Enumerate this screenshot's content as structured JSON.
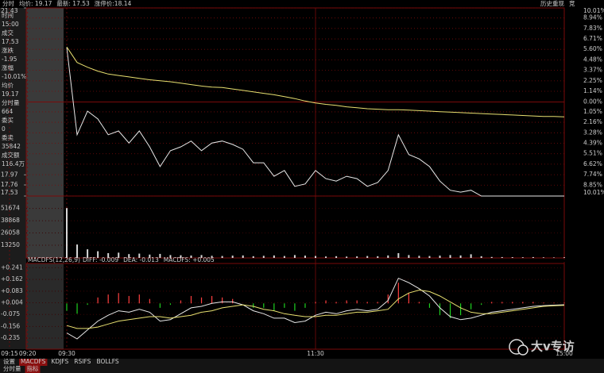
{
  "toolbar": [
    {
      "text": "分时",
      "color": "#dddddd"
    },
    {
      "text": "均价: 19.17",
      "color": "#e8e070"
    },
    {
      "text": "最新: 17.53",
      "color": "#dddddd"
    },
    {
      "text": "涨停价:18.14",
      "color": "#e04040"
    }
  ],
  "toolbar_right": [
    "历史重现",
    "竞"
  ],
  "info_panel": [
    {
      "label": "时间",
      "value": "15:00",
      "color": "#dddddd"
    },
    {
      "label": "成交",
      "value": "17.53",
      "color": "#20d020"
    },
    {
      "label": "涨跌",
      "value": "-1.95",
      "color": "#20d020"
    },
    {
      "label": "涨幅",
      "value": "-10.01%",
      "color": "#20d020"
    },
    {
      "label": "均价",
      "value": "19.17",
      "color": "#ff4040"
    },
    {
      "label": "分时量",
      "value": "664",
      "color": "#e8e070"
    },
    {
      "label": "委买",
      "value": "0",
      "color": "#ff4040"
    },
    {
      "label": "委卖",
      "value": "35842",
      "color": "#20d020"
    },
    {
      "label": "成交额",
      "value": "116.4万",
      "color": "#6fa8ff"
    }
  ],
  "chart_data": [
    {
      "type": "line",
      "x": [
        "09:30",
        "09:35",
        "09:40",
        "09:45",
        "09:50",
        "09:55",
        "10:00",
        "10:05",
        "10:10",
        "10:15",
        "10:20",
        "10:25",
        "10:30",
        "10:35",
        "10:40",
        "10:45",
        "10:50",
        "10:55",
        "11:00",
        "11:05",
        "11:10",
        "11:15",
        "11:20",
        "11:25",
        "11:30",
        "13:05",
        "13:10",
        "13:15",
        "13:20",
        "13:25",
        "13:30",
        "13:35",
        "13:40",
        "13:45",
        "13:50",
        "13:55",
        "14:00",
        "14:05",
        "14:10",
        "14:15",
        "14:20",
        "14:25",
        "14:30",
        "14:35",
        "14:40",
        "14:45",
        "14:50",
        "14:55",
        "15:00"
      ],
      "series": [
        {
          "color": "#e8e8e8",
          "values": [
            20.61,
            18.8,
            19.29,
            19.13,
            18.8,
            18.88,
            18.63,
            18.88,
            18.55,
            18.14,
            18.47,
            18.55,
            18.67,
            18.47,
            18.63,
            18.67,
            18.6,
            18.5,
            18.22,
            18.22,
            17.94,
            18.06,
            17.73,
            17.78,
            18.06,
            17.89,
            17.84,
            17.94,
            17.89,
            17.73,
            17.81,
            18.06,
            18.8,
            18.39,
            18.3,
            18.14,
            17.84,
            17.65,
            17.61,
            17.65,
            17.53,
            17.53,
            17.53,
            17.53,
            17.53,
            17.53,
            17.53,
            17.53,
            17.53
          ]
        },
        {
          "color": "#e8e070",
          "values": [
            20.62,
            20.3,
            20.2,
            20.12,
            20.06,
            20.03,
            20.0,
            19.97,
            19.94,
            19.92,
            19.9,
            19.87,
            19.84,
            19.81,
            19.79,
            19.78,
            19.75,
            19.72,
            19.69,
            19.66,
            19.63,
            19.59,
            19.55,
            19.5,
            19.46,
            19.43,
            19.41,
            19.38,
            19.36,
            19.34,
            19.33,
            19.32,
            19.32,
            19.31,
            19.3,
            19.29,
            19.28,
            19.27,
            19.26,
            19.25,
            19.24,
            19.23,
            19.22,
            19.21,
            19.2,
            19.19,
            19.18,
            19.18,
            19.17
          ]
        }
      ],
      "ylim": [
        17.53,
        21.43
      ],
      "yticks": [
        21.43,
        17.97,
        17.76,
        17.53
      ],
      "y2lim": [
        -10.01,
        10.01
      ],
      "y2ticks": [
        {
          "value": 10.01,
          "label": "10.01%"
        },
        {
          "value": 8.94,
          "label": "8.94%"
        },
        {
          "value": 7.83,
          "label": "7.83%"
        },
        {
          "value": 6.71,
          "label": "6.71%"
        },
        {
          "value": 5.6,
          "label": "5.60%"
        },
        {
          "value": 4.48,
          "label": "4.48%"
        },
        {
          "value": 3.37,
          "label": "3.37%"
        },
        {
          "value": 2.25,
          "label": "2.25%"
        },
        {
          "value": 1.14,
          "label": "1.14%"
        },
        {
          "value": 0,
          "label": "0.00%"
        },
        {
          "value": -1.05,
          "label": "1.05%"
        },
        {
          "value": -2.16,
          "label": "2.16%"
        },
        {
          "value": -3.28,
          "label": "3.28%"
        },
        {
          "value": -4.39,
          "label": "4.39%"
        },
        {
          "value": -5.51,
          "label": "5.51%"
        },
        {
          "value": -6.62,
          "label": "6.62%"
        },
        {
          "value": -7.74,
          "label": "7.74%"
        },
        {
          "value": -8.85,
          "label": "8.85%"
        },
        {
          "value": -10.01,
          "label": "10.01%"
        }
      ],
      "xticks": [
        "09:15",
        "09:20",
        "09:30",
        "11:30",
        "15:00"
      ],
      "up_color": "#ff4040",
      "down_color": "#20d020",
      "grid_color": "#7a0a0a"
    },
    {
      "type": "bar",
      "x": [
        "09:30",
        "09:35",
        "09:40",
        "09:45",
        "09:50",
        "09:55",
        "10:00",
        "10:05",
        "10:10",
        "10:15",
        "10:20",
        "10:25",
        "10:30",
        "10:35",
        "10:40",
        "10:45",
        "10:50",
        "10:55",
        "11:00",
        "11:05",
        "11:10",
        "11:15",
        "11:20",
        "11:25",
        "11:30",
        "13:05",
        "13:10",
        "13:15",
        "13:20",
        "13:25",
        "13:30",
        "13:35",
        "13:40",
        "13:45",
        "13:50",
        "13:55",
        "14:00",
        "14:05",
        "14:10",
        "14:15",
        "14:20",
        "14:25",
        "14:30",
        "14:35",
        "14:40",
        "14:45",
        "14:50",
        "14:55",
        "15:00"
      ],
      "values": [
        52000,
        14000,
        9000,
        7000,
        5000,
        5500,
        4000,
        4500,
        3500,
        4200,
        3000,
        2800,
        2500,
        3000,
        2200,
        2000,
        2400,
        2600,
        1800,
        2200,
        2600,
        2000,
        3000,
        2400,
        2000,
        1500,
        1800,
        1400,
        1600,
        2000,
        1800,
        2600,
        5000,
        3000,
        2200,
        2000,
        2400,
        3000,
        2600,
        3800,
        1800,
        1000,
        900,
        800,
        700,
        900,
        600,
        500,
        664
      ],
      "color": "#d8d8d8",
      "ylim": [
        0,
        64600
      ],
      "yticks": [
        51674,
        38868,
        26058,
        13250
      ]
    },
    {
      "type": "macd",
      "title": "MACDFS(12,26,9)",
      "readout": [
        {
          "text": "DIFF: -0.009",
          "color": "#e8e8e8"
        },
        {
          "text": "DEA: -0.013",
          "color": "#e8e070"
        },
        {
          "text": "MACDFS: +0.005",
          "color": "#ff4040"
        }
      ],
      "x": [
        "09:30",
        "09:35",
        "09:40",
        "09:45",
        "09:50",
        "09:55",
        "10:00",
        "10:05",
        "10:10",
        "10:15",
        "10:20",
        "10:25",
        "10:30",
        "10:35",
        "10:40",
        "10:45",
        "10:50",
        "10:55",
        "11:00",
        "11:05",
        "11:10",
        "11:15",
        "11:20",
        "11:25",
        "11:30",
        "13:05",
        "13:10",
        "13:15",
        "13:20",
        "13:25",
        "13:30",
        "13:35",
        "13:40",
        "13:45",
        "13:50",
        "13:55",
        "14:00",
        "14:05",
        "14:10",
        "14:15",
        "14:20",
        "14:25",
        "14:30",
        "14:35",
        "14:40",
        "14:45",
        "14:50",
        "14:55",
        "15:00"
      ],
      "series": [
        {
          "color": "#e8e8e8",
          "values": [
            -0.2,
            -0.24,
            -0.18,
            -0.12,
            -0.08,
            -0.05,
            -0.06,
            -0.04,
            -0.06,
            -0.12,
            -0.11,
            -0.07,
            -0.03,
            -0.02,
            0,
            0.01,
            0.01,
            -0.01,
            -0.05,
            -0.07,
            -0.1,
            -0.1,
            -0.13,
            -0.12,
            -0.08,
            -0.06,
            -0.07,
            -0.05,
            -0.04,
            -0.05,
            -0.04,
            0.02,
            0.17,
            0.14,
            0.1,
            0.05,
            -0.03,
            -0.09,
            -0.11,
            -0.1,
            -0.08,
            -0.06,
            -0.05,
            -0.04,
            -0.03,
            -0.02,
            -0.015,
            -0.012,
            -0.009
          ]
        },
        {
          "color": "#e8e070",
          "values": [
            -0.15,
            -0.17,
            -0.17,
            -0.16,
            -0.14,
            -0.12,
            -0.11,
            -0.1,
            -0.09,
            -0.09,
            -0.1,
            -0.09,
            -0.08,
            -0.06,
            -0.05,
            -0.03,
            -0.02,
            -0.01,
            -0.02,
            -0.04,
            -0.05,
            -0.07,
            -0.08,
            -0.09,
            -0.09,
            -0.08,
            -0.08,
            -0.07,
            -0.06,
            -0.06,
            -0.05,
            -0.04,
            0.03,
            0.07,
            0.09,
            0.08,
            0.05,
            0.01,
            -0.03,
            -0.06,
            -0.07,
            -0.07,
            -0.06,
            -0.05,
            -0.04,
            -0.03,
            -0.02,
            -0.016,
            -0.013
          ]
        }
      ],
      "bars": [
        -0.05,
        -0.07,
        -0.01,
        0.04,
        0.06,
        0.07,
        0.05,
        0.06,
        0.03,
        -0.03,
        -0.01,
        0.02,
        0.05,
        0.04,
        0.05,
        0.04,
        0.03,
        0,
        -0.03,
        -0.03,
        -0.05,
        -0.03,
        -0.05,
        -0.03,
        0.01,
        0.02,
        0.01,
        0.02,
        0.02,
        0.01,
        0.01,
        0.06,
        0.14,
        0.07,
        0.01,
        -0.03,
        -0.08,
        -0.1,
        -0.08,
        -0.04,
        -0.01,
        0.01,
        0.01,
        0.01,
        0.01,
        0.01,
        0.005,
        0.004,
        0.005
      ],
      "up_color": "#ff4040",
      "down_color": "#20d020",
      "ylim": [
        -0.31,
        0.27
      ],
      "yticks": [
        {
          "value": 0.241,
          "label": "+0.241"
        },
        {
          "value": 0.162,
          "label": "+0.162"
        },
        {
          "value": 0.083,
          "label": "+0.083"
        },
        {
          "value": 0.004,
          "label": "+0.004"
        },
        -0.075,
        -0.156,
        -0.235
      ]
    }
  ],
  "tabs": [
    "设置",
    "MACDFS",
    "KDJFS",
    "RSIFS",
    "BOLLFS"
  ],
  "tabs2": [
    "分时量",
    "指标"
  ],
  "watermark": "大v专访"
}
